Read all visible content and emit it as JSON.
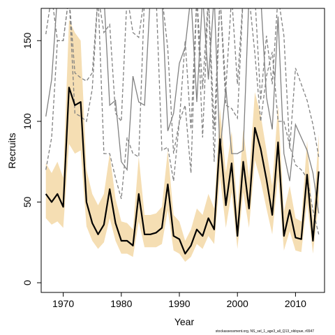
{
  "chart_data": {
    "type": "line",
    "title": "",
    "xlabel": "Year",
    "ylabel": "Recruits",
    "xlim": [
      1966.2,
      2015.0
    ],
    "ylim": [
      -6,
      170
    ],
    "x_ticks": [
      1970,
      1980,
      1990,
      2000,
      2010
    ],
    "y_ticks": [
      0,
      50,
      100,
      150
    ],
    "years": [
      1967,
      1968,
      1969,
      1970,
      1971,
      1972,
      1973,
      1974,
      1975,
      1976,
      1977,
      1978,
      1979,
      1980,
      1981,
      1982,
      1983,
      1984,
      1985,
      1986,
      1987,
      1988,
      1989,
      1990,
      1991,
      1992,
      1993,
      1994,
      1995,
      1996,
      1997,
      1998,
      1999,
      2000,
      2001,
      2002,
      2003,
      2004,
      2005,
      2006,
      2007,
      2008,
      2009,
      2010,
      2011,
      2012,
      2013,
      2014
    ],
    "series": [
      {
        "role": "estimate",
        "color": "#000000",
        "values": [
          55,
          50,
          55,
          47,
          121,
          110,
          112,
          50,
          37,
          30,
          36,
          58,
          37,
          26,
          26,
          23,
          55,
          30,
          30,
          31,
          34,
          61,
          29,
          27,
          18,
          23,
          33,
          29,
          40,
          33,
          89,
          48,
          74,
          29,
          75,
          46,
          96,
          83,
          64,
          42,
          87,
          29,
          45,
          28,
          27,
          67,
          26,
          69
        ]
      },
      {
        "role": "confidence-band-upper",
        "color": "#f5deb3",
        "values": [
          74,
          68,
          75,
          65,
          163,
          155,
          150,
          70,
          55,
          48,
          55,
          80,
          52,
          38,
          37,
          33,
          78,
          42,
          42,
          43,
          47,
          82,
          42,
          38,
          26,
          33,
          46,
          42,
          55,
          46,
          108,
          68,
          94,
          45,
          95,
          65,
          118,
          104,
          82,
          60,
          110,
          44,
          60,
          40,
          38,
          88,
          38,
          92
        ]
      },
      {
        "role": "confidence-band-lower",
        "color": "#f5deb3",
        "values": [
          40,
          36,
          38,
          34,
          86,
          80,
          82,
          35,
          26,
          21,
          25,
          40,
          26,
          18,
          18,
          16,
          38,
          22,
          22,
          22,
          24,
          45,
          20,
          18,
          13,
          16,
          24,
          21,
          29,
          24,
          66,
          34,
          56,
          21,
          56,
          34,
          76,
          63,
          46,
          30,
          66,
          20,
          32,
          20,
          19,
          50,
          18,
          50
        ]
      },
      {
        "role": "comparison-solid",
        "color": "#808080",
        "values": [
          103,
          126,
          178,
          178,
          178,
          178,
          178,
          178,
          178,
          178,
          178,
          110,
          113,
          75,
          70,
          128,
          112,
          110,
          178,
          178,
          178,
          94,
          105,
          136,
          146,
          178,
          112,
          178,
          126,
          178,
          80,
          121,
          80,
          80,
          82,
          178,
          178,
          178,
          115,
          95,
          165,
          80,
          63,
          98,
          90,
          82,
          68,
          43
        ]
      },
      {
        "role": "comparison-dashed-1",
        "color": "#808080",
        "values": [
          154,
          178,
          150,
          150,
          178,
          130,
          127,
          125,
          130,
          178,
          155,
          160,
          105,
          100,
          178,
          155,
          152,
          178,
          178,
          178,
          178,
          145,
          80,
          100,
          150,
          95,
          178,
          120,
          178,
          95,
          178,
          120,
          178,
          123,
          178,
          178,
          178,
          113,
          153,
          123,
          178,
          153,
          83,
          133,
          123,
          113,
          98,
          78
        ]
      },
      {
        "role": "comparison-dashed-2",
        "color": "#808080",
        "values": [
          70,
          90,
          150,
          150,
          178,
          105,
          103,
          100,
          120,
          178,
          80,
          80,
          65,
          52,
          90,
          80,
          78,
          178,
          178,
          178,
          82,
          84,
          63,
          100,
          110,
          68,
          178,
          90,
          178,
          75,
          178,
          110,
          108,
          102,
          178,
          178,
          142,
          100,
          128,
          143,
          100,
          100,
          85,
          73,
          70,
          65,
          45,
          30
        ]
      }
    ],
    "footer_text": "stockassessment.org, NS_sel_1_age3_all_Q13_oldcpue, r6547"
  }
}
